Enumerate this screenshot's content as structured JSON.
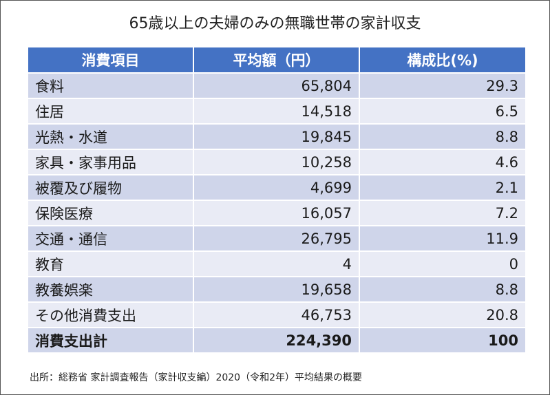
{
  "title": "65歳以上の夫婦のみの無職世帯の家計収支",
  "headers": [
    "消費項目",
    "平均額（円）",
    "構成比(%)"
  ],
  "rows": [
    {
      "item": "食料",
      "amount": "65,804",
      "ratio": "29.3"
    },
    {
      "item": "住居",
      "amount": "14,518",
      "ratio": "6.5"
    },
    {
      "item": "光熱・水道",
      "amount": "19,845",
      "ratio": "8.8"
    },
    {
      "item": "家具・家事用品",
      "amount": "10,258",
      "ratio": "4.6"
    },
    {
      "item": "被覆及び履物",
      "amount": "4,699",
      "ratio": "2.1"
    },
    {
      "item": "保険医療",
      "amount": "16,057",
      "ratio": "7.2"
    },
    {
      "item": "交通・通信",
      "amount": "26,795",
      "ratio": "11.9"
    },
    {
      "item": "教育",
      "amount": "4",
      "ratio": "0"
    },
    {
      "item": "教養娯楽",
      "amount": "19,658",
      "ratio": "8.8"
    },
    {
      "item": "その他消費支出",
      "amount": "46,753",
      "ratio": "20.8"
    }
  ],
  "total": {
    "item": "消費支出計",
    "amount": "224,390",
    "ratio": "100"
  },
  "footnote": "出所：総務省 家計調査報告（家計収支編）2020（令和2年）平均結果の概要",
  "colors": {
    "header": "#4472c4",
    "row_dark": "#cfd5ea",
    "row_light": "#e9ebf5"
  }
}
